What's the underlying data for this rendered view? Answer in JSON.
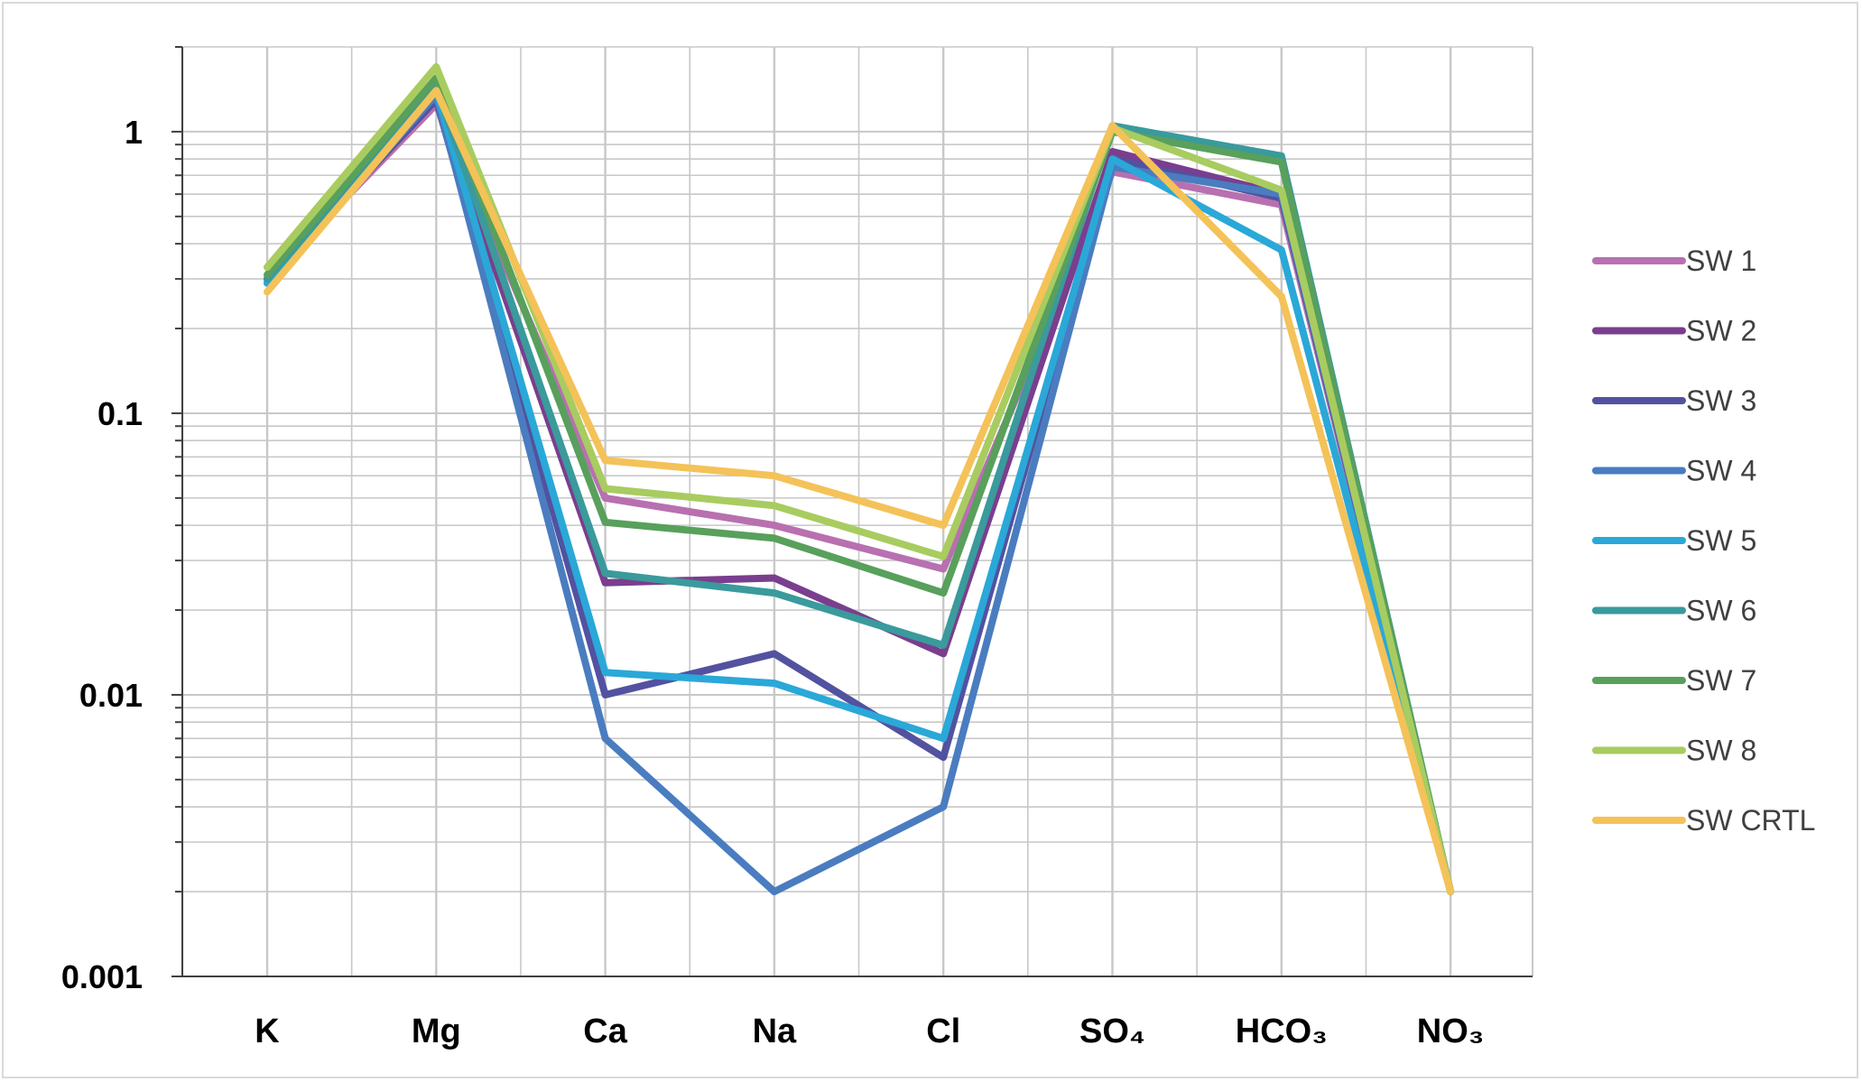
{
  "chart_data": {
    "type": "line",
    "title": "",
    "xlabel": "",
    "ylabel": "",
    "categories": [
      "K",
      "Mg",
      "Ca",
      "Na",
      "Cl",
      "SO₄",
      "HCO₃",
      "NO₃"
    ],
    "y_scale": "log",
    "ylim": [
      0.001,
      2
    ],
    "y_tick_labels": [
      "0.001",
      "0.01",
      "0.1",
      "1"
    ],
    "grid": true,
    "legend": "right",
    "series": [
      {
        "name": "SW 1",
        "color": "#b870b0",
        "values": [
          0.3,
          1.25,
          0.05,
          0.04,
          0.028,
          0.72,
          0.55,
          0.002
        ]
      },
      {
        "name": "SW 2",
        "color": "#7a3e8e",
        "values": [
          0.3,
          1.3,
          0.025,
          0.026,
          0.014,
          0.85,
          0.6,
          0.002
        ]
      },
      {
        "name": "SW 3",
        "color": "#5252a0",
        "values": [
          0.3,
          1.3,
          0.01,
          0.014,
          0.006,
          0.8,
          0.58,
          0.002
        ]
      },
      {
        "name": "SW 4",
        "color": "#4a7cc0",
        "values": [
          0.29,
          1.35,
          0.007,
          0.002,
          0.004,
          0.75,
          0.6,
          0.002
        ]
      },
      {
        "name": "SW 5",
        "color": "#2aa8d8",
        "values": [
          0.29,
          1.4,
          0.012,
          0.011,
          0.007,
          0.8,
          0.38,
          0.002
        ]
      },
      {
        "name": "SW 6",
        "color": "#3a9a9c",
        "values": [
          0.3,
          1.45,
          0.027,
          0.023,
          0.015,
          1.05,
          0.82,
          0.002
        ]
      },
      {
        "name": "SW 7",
        "color": "#58a05c",
        "values": [
          0.31,
          1.55,
          0.041,
          0.036,
          0.023,
          1.0,
          0.78,
          0.002
        ]
      },
      {
        "name": "SW 8",
        "color": "#a8cc60",
        "values": [
          0.33,
          1.7,
          0.054,
          0.047,
          0.031,
          1.03,
          0.62,
          0.002
        ]
      },
      {
        "name": "SW CRTL",
        "color": "#f4c258",
        "values": [
          0.27,
          1.4,
          0.068,
          0.06,
          0.04,
          1.05,
          0.26,
          0.002
        ]
      }
    ]
  }
}
